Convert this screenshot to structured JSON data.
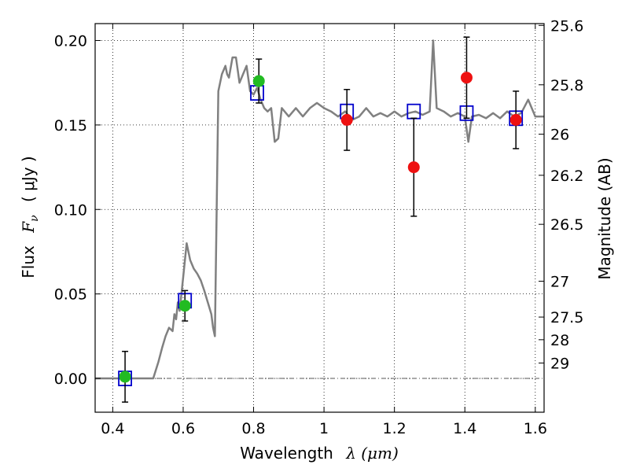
{
  "chart_data": {
    "type": "scatter",
    "title": "",
    "xlabel": "Wavelength",
    "xlabel_math": "λ (μm)",
    "ylabel": "Flux",
    "ylabel_math": "F",
    "ylabel_math_sub": "ν",
    "ylabel_unit": "( μJy )",
    "y2label": "Magnitude (AB)",
    "xlim": [
      0.35,
      1.625
    ],
    "ylim": [
      -0.02,
      0.21
    ],
    "grid": true,
    "x_ticks": [
      0.4,
      0.6,
      0.8,
      1.0,
      1.2,
      1.4,
      1.6
    ],
    "x_tick_labels": [
      "0.4",
      "0.6",
      "0.8",
      "1",
      "1.2",
      "1.4",
      "1.6"
    ],
    "y_ticks": [
      0.0,
      0.05,
      0.1,
      0.15,
      0.2
    ],
    "y_tick_labels": [
      "0.00",
      "0.05",
      "0.10",
      "0.15",
      "0.20"
    ],
    "y2_tick_labels": [
      "25.6",
      "25.8",
      "26",
      "26.2",
      "26.5",
      "27",
      "27.5",
      "28",
      "29"
    ],
    "zero_line": true,
    "colors": {
      "template": "#808080",
      "model_box": "#0000cc",
      "observed_optical": "#22bb22",
      "observed_nir": "#ee1111",
      "error_bar": "#000000",
      "zero_line": "#555555"
    },
    "series": [
      {
        "kind": "template-spectrum",
        "x": [
          0.35,
          0.4,
          0.45,
          0.5,
          0.515,
          0.53,
          0.54,
          0.55,
          0.56,
          0.57,
          0.575,
          0.58,
          0.585,
          0.59,
          0.6,
          0.61,
          0.62,
          0.63,
          0.64,
          0.65,
          0.66,
          0.67,
          0.68,
          0.685,
          0.69,
          0.7,
          0.71,
          0.72,
          0.725,
          0.73,
          0.74,
          0.75,
          0.76,
          0.77,
          0.78,
          0.79,
          0.8,
          0.81,
          0.82,
          0.83,
          0.84,
          0.85,
          0.86,
          0.87,
          0.88,
          0.9,
          0.92,
          0.94,
          0.96,
          0.98,
          1.0,
          1.02,
          1.04,
          1.06,
          1.08,
          1.1,
          1.12,
          1.14,
          1.16,
          1.18,
          1.2,
          1.22,
          1.24,
          1.26,
          1.28,
          1.3,
          1.31,
          1.32,
          1.34,
          1.36,
          1.38,
          1.4,
          1.41,
          1.42,
          1.44,
          1.46,
          1.48,
          1.5,
          1.52,
          1.54,
          1.56,
          1.58,
          1.6,
          1.625
        ],
        "y": [
          0.0,
          0.0,
          0.0,
          0.0,
          0.0,
          0.01,
          0.018,
          0.025,
          0.03,
          0.028,
          0.038,
          0.035,
          0.045,
          0.04,
          0.06,
          0.08,
          0.07,
          0.065,
          0.062,
          0.058,
          0.052,
          0.045,
          0.038,
          0.03,
          0.025,
          0.17,
          0.18,
          0.185,
          0.18,
          0.178,
          0.19,
          0.19,
          0.175,
          0.18,
          0.185,
          0.17,
          0.168,
          0.172,
          0.165,
          0.16,
          0.158,
          0.16,
          0.14,
          0.142,
          0.16,
          0.155,
          0.16,
          0.155,
          0.16,
          0.163,
          0.16,
          0.158,
          0.155,
          0.158,
          0.153,
          0.155,
          0.16,
          0.155,
          0.157,
          0.155,
          0.158,
          0.155,
          0.157,
          0.158,
          0.156,
          0.158,
          0.2,
          0.16,
          0.158,
          0.155,
          0.157,
          0.155,
          0.14,
          0.155,
          0.156,
          0.154,
          0.157,
          0.154,
          0.158,
          0.155,
          0.157,
          0.165,
          0.155,
          0.155
        ]
      },
      {
        "kind": "model-photometry",
        "name": "",
        "x": [
          0.435,
          0.605,
          0.81,
          1.065,
          1.255,
          1.405,
          1.545
        ],
        "y": [
          0.0,
          0.046,
          0.169,
          0.158,
          0.158,
          0.157,
          0.154
        ]
      },
      {
        "kind": "observed-photometry",
        "name": "",
        "points": [
          {
            "x": 0.435,
            "y": 0.001,
            "err": 0.015,
            "band": "optical"
          },
          {
            "x": 0.605,
            "y": 0.043,
            "err": 0.009,
            "band": "optical"
          },
          {
            "x": 0.815,
            "y": 0.176,
            "err": 0.013,
            "band": "optical"
          },
          {
            "x": 1.065,
            "y": 0.153,
            "err": 0.018,
            "band": "nir"
          },
          {
            "x": 1.255,
            "y": 0.125,
            "err": 0.029,
            "band": "nir"
          },
          {
            "x": 1.405,
            "y": 0.178,
            "err": 0.024,
            "band": "nir"
          },
          {
            "x": 1.545,
            "y": 0.153,
            "err": 0.017,
            "band": "nir"
          }
        ]
      }
    ]
  }
}
